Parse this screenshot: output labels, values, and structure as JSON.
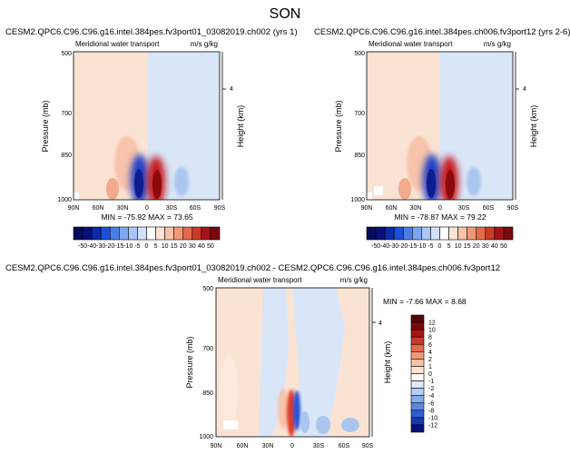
{
  "page_title": "SON",
  "colors": {
    "positive": "#c8141e",
    "negative": "#1e3cc8",
    "background_pos": "#fbe3d4",
    "background_neg": "#d8e6f8"
  },
  "panels": [
    {
      "id": "top-left",
      "case_title": "CESM2.QPC6.C96.C96.g16.intel.384pes.fv3port01_03082019.ch002 (yrs 1)",
      "variable": "Meridional water transport",
      "units": "m/s g/kg",
      "min_max": "MIN = -75.92   MAX = 73.65"
    },
    {
      "id": "top-right",
      "case_title": "CESM2.QPC6.C96.C96.g16.intel.384pes.ch006.fv3port12 (yrs 2-6)",
      "variable": "Meridional water transport",
      "units": "m/s g/kg",
      "min_max": "MIN = -78.87   MAX = 79.22"
    },
    {
      "id": "bottom-diff",
      "case_title": "CESM2.QPC6.C96.C96.g16.intel.384pes.fv3port01_03082019.ch002 - CESM2.QPC6.C96.C96.g16.intel.384pes.ch006.fv3port12",
      "variable": "Meridional water transport",
      "units": "m/s g/kg",
      "min_max": "MIN = -7.66   MAX =  8.68"
    }
  ],
  "chart_data": [
    {
      "type": "heatmap",
      "title": "CESM2.QPC6.C96.C96.g16.intel.384pes.fv3port01_03082019.ch002 (yrs 1)",
      "xlabel": "",
      "ylabel": "Pressure (mb)",
      "y2label": "Height (km)",
      "x_ticks": [
        "90N",
        "60N",
        "30N",
        "0",
        "30S",
        "60S",
        "90S"
      ],
      "y_ticks": [
        "500",
        "700",
        "850",
        "1000"
      ],
      "y2_ticks": [
        "4"
      ],
      "min": -75.92,
      "max": 73.65,
      "features": [
        {
          "lat": -8,
          "pressure_top": 800,
          "value": 55
        },
        {
          "lat": 8,
          "pressure_top": 790,
          "value": -55
        },
        {
          "lat": -22,
          "pressure_top": 900,
          "value": -10
        },
        {
          "lat": 22,
          "pressure_top": 900,
          "value": 10
        }
      ]
    },
    {
      "type": "heatmap",
      "title": "CESM2.QPC6.C96.C96.g16.intel.384pes.ch006.fv3port12 (yrs 2-6)",
      "xlabel": "",
      "ylabel": "Pressure (mb)",
      "y2label": "Height (km)",
      "x_ticks": [
        "90N",
        "60N",
        "30N",
        "0",
        "30S",
        "60S",
        "90S"
      ],
      "y_ticks": [
        "500",
        "700",
        "850",
        "1000"
      ],
      "y2_ticks": [
        "4"
      ],
      "min": -78.87,
      "max": 79.22,
      "features": [
        {
          "lat": -8,
          "pressure_top": 800,
          "value": 58
        },
        {
          "lat": 8,
          "pressure_top": 790,
          "value": -58
        },
        {
          "lat": -22,
          "pressure_top": 900,
          "value": -10
        },
        {
          "lat": 22,
          "pressure_top": 900,
          "value": 10
        }
      ]
    },
    {
      "type": "heatmap",
      "title": "CESM2.QPC6.C96.C96.g16.intel.384pes.fv3port01_03082019.ch002 - CESM2.QPC6.C96.C96.g16.intel.384pes.ch006.fv3port12",
      "xlabel": "",
      "ylabel": "Pressure (mb)",
      "y2label": "Height (km)",
      "x_ticks": [
        "90N",
        "60N",
        "30N",
        "0",
        "30S",
        "60S",
        "90S"
      ],
      "y_ticks": [
        "500",
        "700",
        "850",
        "1000"
      ],
      "y2_ticks": [
        "4"
      ],
      "min": -7.66,
      "max": 8.68,
      "features": [
        {
          "lat": 0,
          "pressure_top": 860,
          "value": 8
        },
        {
          "lat": -4,
          "pressure_top": 850,
          "value": -6
        },
        {
          "lat": -12,
          "pressure_top": 900,
          "value": -2
        },
        {
          "lat": 10,
          "pressure_top": 900,
          "value": 2
        }
      ]
    }
  ],
  "colorbars": {
    "horizontal": {
      "labels": [
        "-50",
        "-40",
        "-30",
        "-20",
        "-15",
        "-10",
        "-5",
        "0",
        "5",
        "10",
        "15",
        "20",
        "30",
        "40",
        "50"
      ]
    },
    "vertical": {
      "labels": [
        "12",
        "10",
        "8",
        "6",
        "4",
        "2",
        "1",
        "0",
        "-1",
        "-2",
        "-4",
        "-6",
        "-8",
        "-10",
        "-12"
      ]
    }
  }
}
